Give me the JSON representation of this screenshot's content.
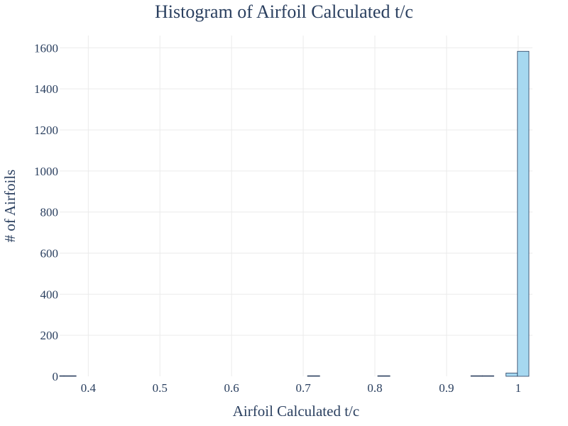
{
  "chart_data": {
    "type": "bar",
    "title": "Histogram of Airfoil Calculated t/c",
    "xlabel": "Airfoil Calculated t/c",
    "ylabel": "# of Airfoils",
    "xlim": [
      0.36,
      1.02
    ],
    "ylim": [
      0,
      1660
    ],
    "xticks": [
      0.4,
      0.5,
      0.6,
      0.7,
      0.8,
      0.9,
      1
    ],
    "xtick_labels": [
      "0.4",
      "0.5",
      "0.6",
      "0.7",
      "0.8",
      "0.9",
      "1"
    ],
    "yticks": [
      0,
      200,
      400,
      600,
      800,
      1000,
      1200,
      1400,
      1600
    ],
    "ytick_labels": [
      "0",
      "200",
      "400",
      "600",
      "800",
      "1000",
      "1200",
      "1400",
      "1600"
    ],
    "grid": true,
    "bar_color": "#a6d8f0",
    "bar_edge_color": "#2a3f5f",
    "text_color": "#2a3f5f",
    "bins": [
      {
        "x0": 0.35,
        "x1": 0.366,
        "count": 1
      },
      {
        "x0": 0.366,
        "x1": 0.383,
        "count": 1
      },
      {
        "x0": 0.706,
        "x1": 0.723,
        "count": 2
      },
      {
        "x0": 0.804,
        "x1": 0.821,
        "count": 2
      },
      {
        "x0": 0.934,
        "x1": 0.95,
        "count": 1
      },
      {
        "x0": 0.95,
        "x1": 0.966,
        "count": 1
      },
      {
        "x0": 0.983,
        "x1": 0.999,
        "count": 16
      },
      {
        "x0": 0.999,
        "x1": 1.015,
        "count": 1583
      }
    ]
  }
}
